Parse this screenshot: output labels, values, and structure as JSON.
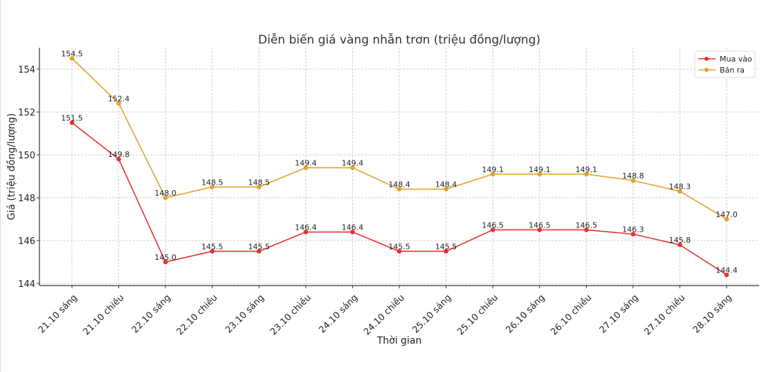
{
  "chart_data": {
    "type": "line",
    "title": "Diễn biến giá vàng nhẫn trơn (triệu đồng/lượng)",
    "xlabel": "Thời gian",
    "ylabel": "Giá (triệu đồng/lượng)",
    "ylim": [
      143.9,
      155.0
    ],
    "yticks": [
      144,
      146,
      148,
      150,
      152,
      154
    ],
    "grid": true,
    "legend_position": "top-right",
    "categories": [
      "21.10 sáng",
      "21.10 chiều",
      "22.10 sáng",
      "22.10 chiều",
      "23.10 sáng",
      "23.10 chiều",
      "24.10 sáng",
      "24.10 chiều",
      "25.10 sáng",
      "25.10 chiều",
      "26.10 sáng",
      "26.10 chiều",
      "27.10 sáng",
      "27.10 chiều",
      "28.10 sáng"
    ],
    "series": [
      {
        "name": "Mua vào",
        "color": "#e8312f",
        "values": [
          151.5,
          149.8,
          145.0,
          145.5,
          145.5,
          146.4,
          146.4,
          145.5,
          145.5,
          146.5,
          146.5,
          146.5,
          146.3,
          145.8,
          144.4
        ]
      },
      {
        "name": "Bán ra",
        "color": "#e3a02b",
        "values": [
          154.5,
          152.4,
          148.0,
          148.5,
          148.5,
          149.4,
          149.4,
          148.4,
          148.4,
          149.1,
          149.1,
          149.1,
          148.8,
          148.3,
          147.0
        ]
      }
    ]
  }
}
